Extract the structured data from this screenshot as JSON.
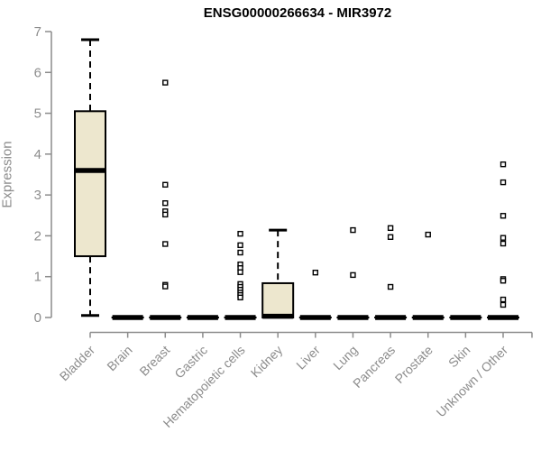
{
  "chart_data": {
    "type": "boxplot",
    "title": "ENSG00000266634 - MIR3972",
    "xlabel": "",
    "ylabel": "Expression",
    "ylim": [
      0,
      7
    ],
    "yticks": [
      0,
      1,
      2,
      3,
      4,
      5,
      6,
      7
    ],
    "grid": false,
    "legend": null,
    "categories": [
      "Bladder",
      "Brain",
      "Breast",
      "Gastric",
      "Hematopoietic cells",
      "Kidney",
      "Liver",
      "Lung",
      "Pancreas",
      "Prostate",
      "Skin",
      "Unknown / Other"
    ],
    "boxes": [
      {
        "category": "Bladder",
        "whisker_low": 0.05,
        "q1": 1.5,
        "median": 3.6,
        "q3": 5.05,
        "whisker_high": 6.8,
        "outliers": []
      },
      {
        "category": "Brain",
        "whisker_low": 0,
        "q1": 0,
        "median": 0,
        "q3": 0,
        "whisker_high": 0,
        "outliers": []
      },
      {
        "category": "Breast",
        "whisker_low": 0,
        "q1": 0,
        "median": 0,
        "q3": 0,
        "whisker_high": 0,
        "outliers": [
          5.75,
          3.25,
          2.8,
          2.6,
          2.52,
          1.8,
          0.8,
          0.76
        ]
      },
      {
        "category": "Gastric",
        "whisker_low": 0,
        "q1": 0,
        "median": 0,
        "q3": 0,
        "whisker_high": 0,
        "outliers": []
      },
      {
        "category": "Hematopoietic cells",
        "whisker_low": 0,
        "q1": 0,
        "median": 0,
        "q3": 0,
        "whisker_high": 0,
        "outliers": [
          2.05,
          1.77,
          1.59,
          1.3,
          1.21,
          1.11,
          0.82,
          0.75,
          0.68,
          0.61,
          0.55,
          0.49
        ]
      },
      {
        "category": "Kidney",
        "whisker_low": 0,
        "q1": 0,
        "median": 0.03,
        "q3": 0.84,
        "whisker_high": 2.14,
        "outliers": []
      },
      {
        "category": "Liver",
        "whisker_low": 0,
        "q1": 0,
        "median": 0,
        "q3": 0,
        "whisker_high": 0,
        "outliers": [
          1.1
        ]
      },
      {
        "category": "Lung",
        "whisker_low": 0,
        "q1": 0,
        "median": 0,
        "q3": 0,
        "whisker_high": 0,
        "outliers": [
          2.14,
          1.04
        ]
      },
      {
        "category": "Pancreas",
        "whisker_low": 0,
        "q1": 0,
        "median": 0,
        "q3": 0,
        "whisker_high": 0,
        "outliers": [
          2.19,
          1.97,
          0.75
        ]
      },
      {
        "category": "Prostate",
        "whisker_low": 0,
        "q1": 0,
        "median": 0,
        "q3": 0,
        "whisker_high": 0,
        "outliers": [
          2.03
        ]
      },
      {
        "category": "Skin",
        "whisker_low": 0,
        "q1": 0,
        "median": 0,
        "q3": 0,
        "whisker_high": 0,
        "outliers": []
      },
      {
        "category": "Unknown / Other",
        "whisker_low": 0,
        "q1": 0,
        "median": 0,
        "q3": 0,
        "whisker_high": 0,
        "outliers": [
          3.75,
          3.31,
          2.49,
          1.95,
          1.81,
          0.94,
          0.9,
          0.44,
          0.31
        ]
      }
    ],
    "colors": {
      "background": "#FFFFFF",
      "box_fill": "#EDE7CE",
      "box_border": "#000000",
      "median": "#000000",
      "whisker": "#000000",
      "outlier": "#000000",
      "axis": "#8C8C8C",
      "tick_label": "#8C8C8C",
      "title": "#000000"
    }
  }
}
